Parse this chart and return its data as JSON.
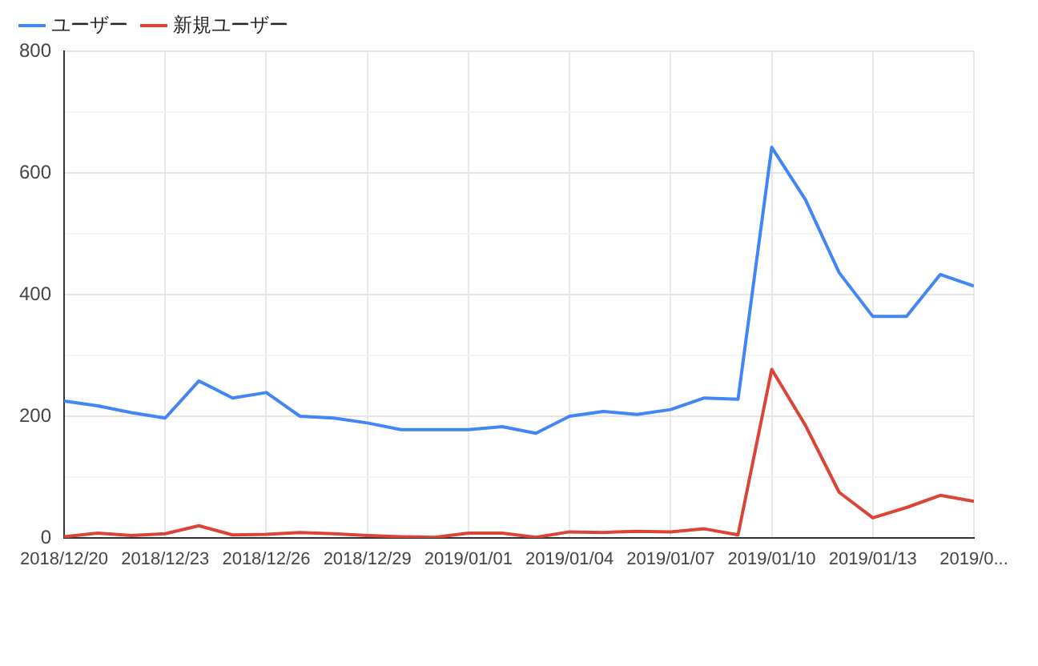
{
  "chart_data": {
    "type": "line",
    "x": [
      "2018-12-20",
      "2018-12-21",
      "2018-12-22",
      "2018-12-23",
      "2018-12-24",
      "2018-12-25",
      "2018-12-26",
      "2018-12-27",
      "2018-12-28",
      "2018-12-29",
      "2018-12-30",
      "2018-12-31",
      "2019-01-01",
      "2019-01-02",
      "2019-01-03",
      "2019-01-04",
      "2019-01-05",
      "2019-01-06",
      "2019-01-07",
      "2019-01-08",
      "2019-01-09",
      "2019-01-10",
      "2019-01-11",
      "2019-01-12",
      "2019-01-13",
      "2019-01-14",
      "2019-01-15",
      "2019-01-16"
    ],
    "series": [
      {
        "name": "ユーザー",
        "color": "#4285f4",
        "values": [
          225,
          217,
          206,
          197,
          258,
          230,
          239,
          200,
          197,
          189,
          178,
          178,
          178,
          183,
          172,
          200,
          208,
          203,
          211,
          230,
          228,
          642,
          556,
          436,
          364,
          364,
          433,
          414
        ]
      },
      {
        "name": "新規ユーザー",
        "color": "#db4437",
        "values": [
          2,
          8,
          4,
          7,
          20,
          5,
          6,
          9,
          7,
          4,
          2,
          1,
          8,
          8,
          1,
          10,
          9,
          11,
          10,
          15,
          5,
          277,
          185,
          75,
          33,
          50,
          70,
          60
        ]
      }
    ],
    "xlim": [
      "2018-12-20",
      "2019-01-16"
    ],
    "xticks": [
      {
        "value": "2018-12-20",
        "label": "2018/12/20"
      },
      {
        "value": "2018-12-23",
        "label": "2018/12/23"
      },
      {
        "value": "2018-12-26",
        "label": "2018/12/26"
      },
      {
        "value": "2018-12-29",
        "label": "2018/12/29"
      },
      {
        "value": "2019-01-01",
        "label": "2019/01/01"
      },
      {
        "value": "2019-01-04",
        "label": "2019/01/04"
      },
      {
        "value": "2019-01-07",
        "label": "2019/01/07"
      },
      {
        "value": "2019-01-10",
        "label": "2019/01/10"
      },
      {
        "value": "2019-01-13",
        "label": "2019/01/13"
      },
      {
        "value": "2019-01-16",
        "label": "2019/0..."
      }
    ],
    "ylim": [
      0,
      800
    ],
    "yticks": [
      0,
      {
        "value": 100,
        "label": null
      },
      200,
      {
        "value": 300,
        "label": null
      },
      400,
      {
        "value": 500,
        "label": null
      },
      600,
      {
        "value": 700,
        "label": null
      },
      800
    ],
    "grid": true,
    "legend": "top left",
    "marker": "none",
    "line_style": "solid"
  }
}
